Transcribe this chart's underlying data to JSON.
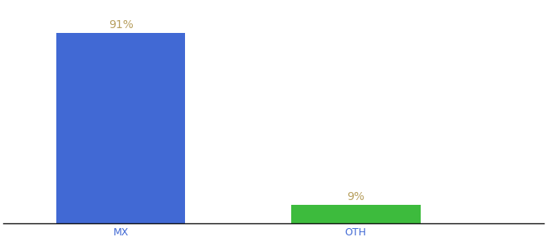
{
  "categories": [
    "MX",
    "OTH"
  ],
  "values": [
    91,
    9
  ],
  "bar_colors": [
    "#4169d4",
    "#3dbb3d"
  ],
  "label_color": "#b8a060",
  "label_fontsize": 10,
  "xlabel_fontsize": 9,
  "xlabel_color": "#4169d4",
  "background_color": "#ffffff",
  "ylim": [
    0,
    105
  ],
  "bar_width": 0.55,
  "annotations": [
    "91%",
    "9%"
  ],
  "x_positions": [
    1,
    2
  ],
  "xlim": [
    0.5,
    2.8
  ]
}
